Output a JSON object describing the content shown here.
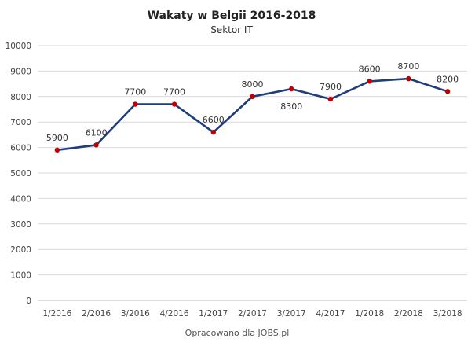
{
  "chart_data": {
    "type": "line",
    "title": "Wakaty w Belgii 2016-2018",
    "subtitle": "Sektor IT",
    "source": "Opracowano dla JOBS.pl",
    "categories": [
      "1/2016",
      "2/2016",
      "3/2016",
      "4/2016",
      "1/2017",
      "2/2017",
      "3/2017",
      "4/2017",
      "1/2018",
      "2/2018",
      "3/2018"
    ],
    "series": [
      {
        "values": [
          5900,
          6100,
          7700,
          7700,
          6600,
          8000,
          8300,
          7900,
          8600,
          8700,
          8200
        ],
        "data_labels": [
          "5900",
          "6100",
          "7700",
          "7700",
          "6600",
          "8000",
          "8300",
          "7900",
          "8600",
          "8700",
          "8200"
        ],
        "line_color": "#1f3d7a",
        "marker_color": "#c00000"
      }
    ],
    "ylim": [
      0,
      10000
    ],
    "yticks": [
      0,
      1000,
      2000,
      3000,
      4000,
      5000,
      6000,
      7000,
      8000,
      9000,
      10000
    ],
    "ytick_labels": [
      "0",
      "1000",
      "2000",
      "3000",
      "4000",
      "5000",
      "6000",
      "7000",
      "8000",
      "9000",
      "10000"
    ],
    "grid": true,
    "legend": "none"
  }
}
